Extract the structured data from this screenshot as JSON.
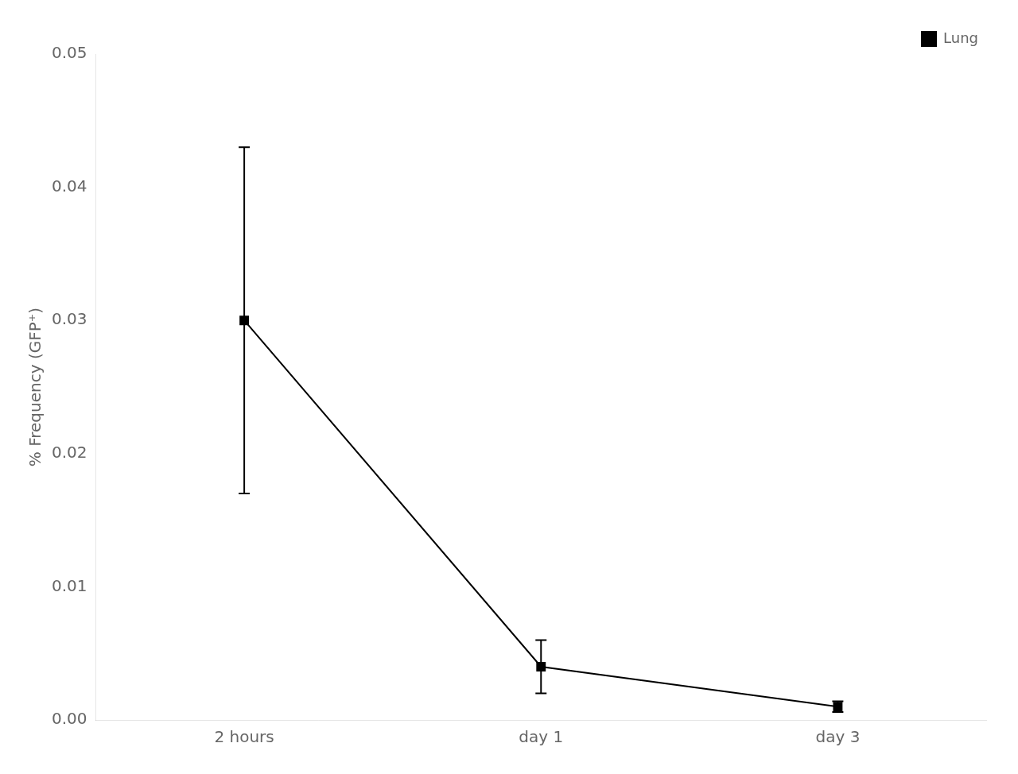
{
  "chart_data": {
    "type": "line",
    "categories": [
      "2 hours",
      "day 1",
      "day 3"
    ],
    "series": [
      {
        "name": "Lung",
        "color": "#000000",
        "marker": "square",
        "line_style": "solid",
        "values": [
          0.03,
          0.004,
          0.001
        ],
        "error_upper": [
          0.013,
          0.002,
          0.0004
        ],
        "error_lower": [
          0.013,
          0.002,
          0.0004
        ]
      }
    ],
    "y_label": "% Frequency (GFP⁺)",
    "ylim": [
      0.0,
      0.05
    ],
    "yticks": [
      {
        "value": 0,
        "label": "0.00"
      },
      0.01,
      0.02,
      0.03,
      0.04,
      0.05
    ],
    "grid": false,
    "legend": "upper right"
  }
}
